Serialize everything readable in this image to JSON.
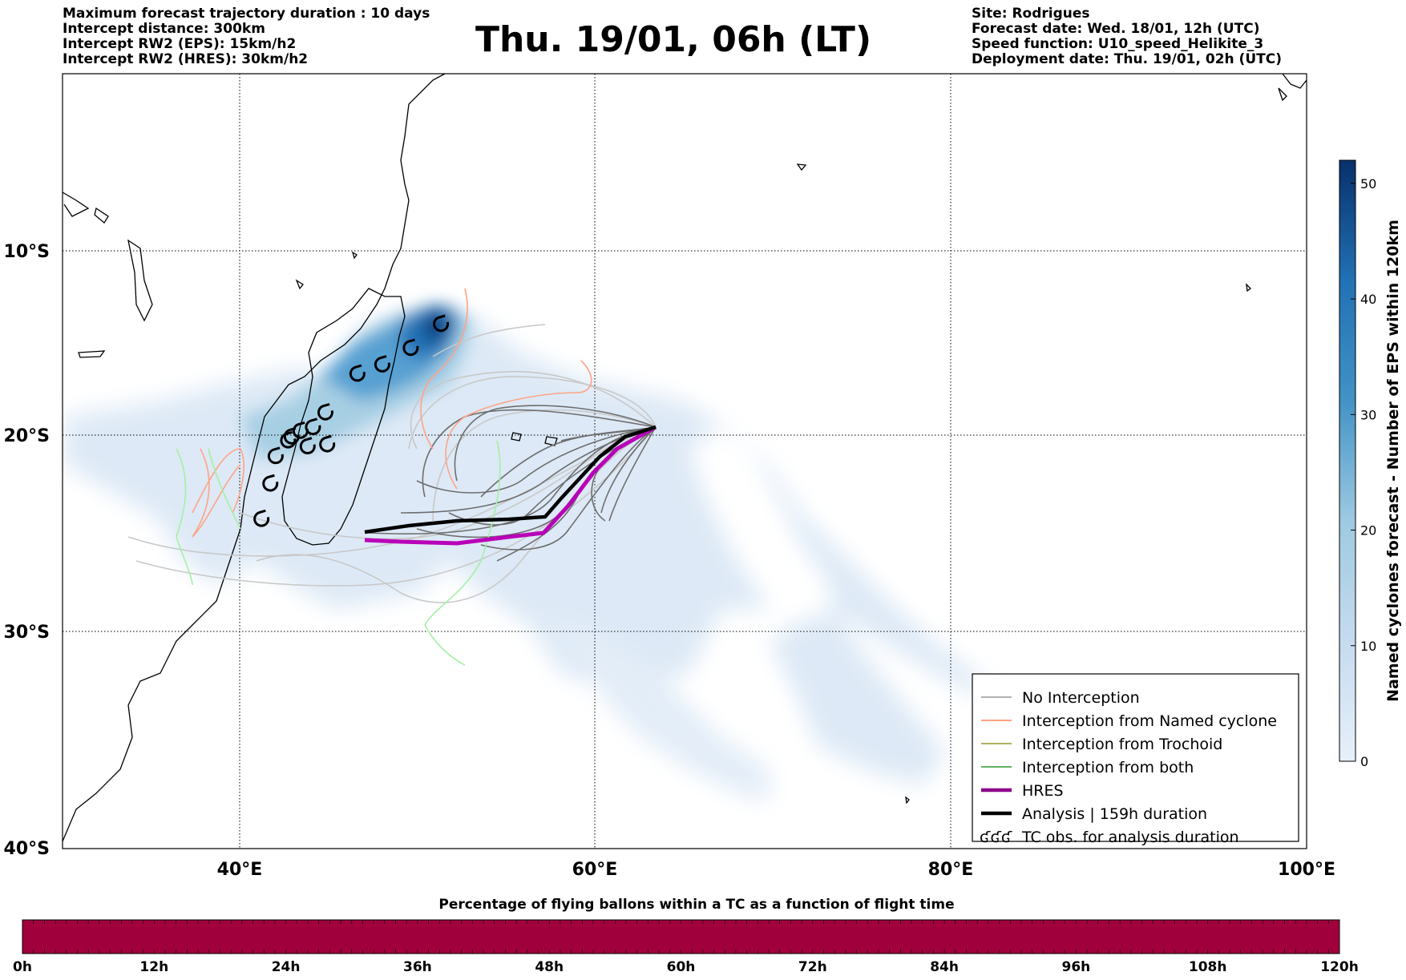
{
  "header": {
    "title": "Thu. 19/01, 06h (LT)",
    "left_lines": [
      "Maximum forecast trajectory duration : 10 days",
      "Intercept distance: 300km",
      "Intercept RW2 (EPS):  15km/h2",
      "Intercept RW2 (HRES): 30km/h2"
    ],
    "right_lines": [
      "Site: Rodrigues",
      "Forecast date: Wed. 18/01, 12h (UTC)",
      "Speed function: U10_speed_Helikite_3",
      "Deployment date: Thu. 19/01, 02h (UTC)"
    ]
  },
  "map": {
    "lon_labels": [
      "40°E",
      "60°E",
      "80°E",
      "100°E"
    ],
    "lat_labels": [
      "10°S",
      "20°S",
      "30°S",
      "40°S"
    ],
    "extent": {
      "lon": [
        30,
        100
      ],
      "lat": [
        -40,
        0
      ]
    },
    "gridlines": true
  },
  "colorbar": {
    "label": "Named cyclones forecast - Number of EPS within 120km",
    "ticks": [
      "0",
      "10",
      "20",
      "30",
      "40",
      "50"
    ],
    "range": [
      0,
      52
    ],
    "colors": [
      "#e3edf8",
      "#08306b"
    ]
  },
  "legend": {
    "items": [
      {
        "label": "No Interception",
        "color": "#808080",
        "style": "thin"
      },
      {
        "label": "Interception from Named cyclone",
        "color": "#ff6a3d",
        "style": "thin"
      },
      {
        "label": "Interception from Trochoid",
        "color": "#808000",
        "style": "thin"
      },
      {
        "label": "Interception from both",
        "color": "#008000",
        "style": "thin"
      },
      {
        "label": "HRES",
        "color": "#8b008b",
        "style": "thick"
      },
      {
        "label": "Analysis | 159h duration",
        "color": "#000000",
        "style": "thick"
      },
      {
        "label": "TC obs. for analysis duration",
        "color": "#000000",
        "style": "symbol",
        "symbol": "ʛʛʛ"
      }
    ]
  },
  "time_bar": {
    "title": "Percentage of flying ballons within a TC as a function of flight time",
    "ticks": [
      "0h",
      "12h",
      "24h",
      "36h",
      "48h",
      "60h",
      "72h",
      "84h",
      "96h",
      "108h",
      "120h"
    ],
    "fill_color": "#a0003c"
  },
  "chart_data": {
    "type": "map-trajectories",
    "tc_observations": [
      {
        "lon": 51.3,
        "lat": -14.0
      },
      {
        "lon": 49.6,
        "lat": -15.3
      },
      {
        "lon": 48.0,
        "lat": -16.2
      },
      {
        "lon": 46.6,
        "lat": -16.7
      },
      {
        "lon": 44.8,
        "lat": -18.8
      },
      {
        "lon": 44.1,
        "lat": -19.6
      },
      {
        "lon": 43.4,
        "lat": -19.8
      },
      {
        "lon": 42.9,
        "lat": -20.1
      },
      {
        "lon": 42.7,
        "lat": -20.3
      },
      {
        "lon": 43.8,
        "lat": -20.6
      },
      {
        "lon": 44.9,
        "lat": -20.5
      },
      {
        "lon": 42.0,
        "lat": -21.1
      },
      {
        "lon": 41.7,
        "lat": -22.5
      },
      {
        "lon": 41.2,
        "lat": -24.3
      }
    ],
    "analysis_track": [
      [
        63.5,
        -19.7
      ],
      [
        62.0,
        -20.1
      ],
      [
        60.5,
        -21.2
      ],
      [
        59.5,
        -22.5
      ],
      [
        58.0,
        -23.4
      ],
      [
        57.0,
        -24.2
      ],
      [
        55.0,
        -24.4
      ],
      [
        52.0,
        -24.5
      ],
      [
        50.0,
        -24.6
      ],
      [
        47.0,
        -25.1
      ]
    ],
    "hres_track": [
      [
        63.5,
        -19.7
      ],
      [
        61.5,
        -20.6
      ],
      [
        60.0,
        -21.8
      ],
      [
        58.5,
        -23.2
      ],
      [
        57.0,
        -24.6
      ],
      [
        55.0,
        -25.0
      ],
      [
        52.0,
        -25.4
      ],
      [
        49.0,
        -25.3
      ],
      [
        47.0,
        -25.2
      ]
    ],
    "eps_density": [
      {
        "lon": 50.9,
        "lat": -14.8,
        "value": 52
      },
      {
        "lon": 49.0,
        "lat": -16.0,
        "value": 45
      },
      {
        "lon": 47.0,
        "lat": -17.0,
        "value": 38
      },
      {
        "lon": 44.5,
        "lat": -19.5,
        "value": 30
      },
      {
        "lon": 42.5,
        "lat": -21.0,
        "value": 20
      },
      {
        "lon": 40.0,
        "lat": -22.0,
        "value": 8
      },
      {
        "lon": 55.0,
        "lat": -21.0,
        "value": 10
      },
      {
        "lon": 60.0,
        "lat": -24.0,
        "value": 6
      },
      {
        "lon": 65.0,
        "lat": -30.0,
        "value": 4
      },
      {
        "lon": 68.0,
        "lat": -33.0,
        "value": 3
      }
    ]
  }
}
